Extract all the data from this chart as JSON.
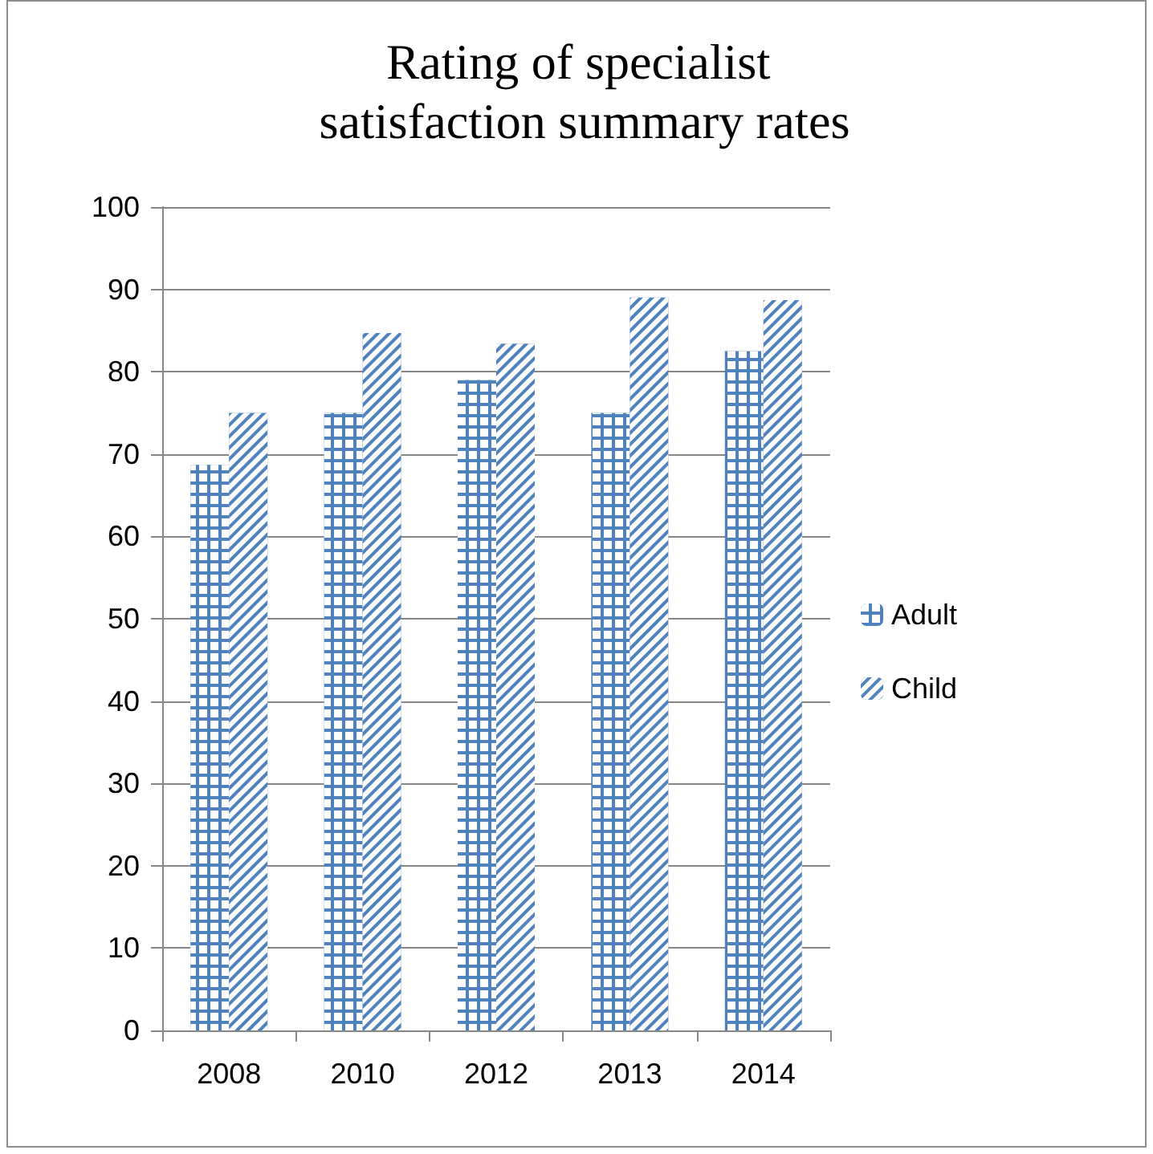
{
  "chart_data": {
    "type": "bar",
    "title": "Rating of specialist satisfaction summary rates",
    "categories": [
      "2008",
      "2010",
      "2012",
      "2013",
      "2014"
    ],
    "series": [
      {
        "name": "Adult",
        "color": "#4f81bd",
        "values": [
          68.7,
          75,
          79,
          75,
          82.5
        ]
      },
      {
        "name": "Child",
        "color": "#4f81bd",
        "values": [
          75,
          84.7,
          83.4,
          89,
          88.7
        ]
      }
    ],
    "ylim": [
      0,
      100
    ],
    "yticks": [
      0,
      10,
      20,
      30,
      40,
      50,
      60,
      70,
      80,
      90,
      100
    ],
    "grid": "y",
    "legend": "right"
  }
}
